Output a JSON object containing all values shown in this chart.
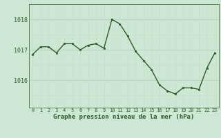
{
  "x": [
    0,
    1,
    2,
    3,
    4,
    5,
    6,
    7,
    8,
    9,
    10,
    11,
    12,
    13,
    14,
    15,
    16,
    17,
    18,
    19,
    20,
    21,
    22,
    23
  ],
  "y": [
    1016.85,
    1017.1,
    1017.1,
    1016.9,
    1017.2,
    1017.2,
    1017.0,
    1017.15,
    1017.2,
    1017.05,
    1018.0,
    1017.85,
    1017.45,
    1016.95,
    1016.65,
    1016.35,
    1015.85,
    1015.65,
    1015.55,
    1015.75,
    1015.75,
    1015.7,
    1016.4,
    1016.9
  ],
  "yticks": [
    1016,
    1017,
    1018
  ],
  "xticks": [
    0,
    1,
    2,
    3,
    4,
    5,
    6,
    7,
    8,
    9,
    10,
    11,
    12,
    13,
    14,
    15,
    16,
    17,
    18,
    19,
    20,
    21,
    22,
    23
  ],
  "line_color": "#2d5a27",
  "marker_color": "#2d5a27",
  "bg_color": "#cce8d4",
  "grid_color_h": "#b8d4be",
  "grid_color_v": "#c8ddc8",
  "xlabel": "Graphe pression niveau de la mer (hPa)",
  "xlabel_color": "#2d5a27",
  "tick_color": "#2d5a27",
  "ylim": [
    1015.1,
    1018.5
  ],
  "xlim": [
    -0.5,
    23.5
  ]
}
